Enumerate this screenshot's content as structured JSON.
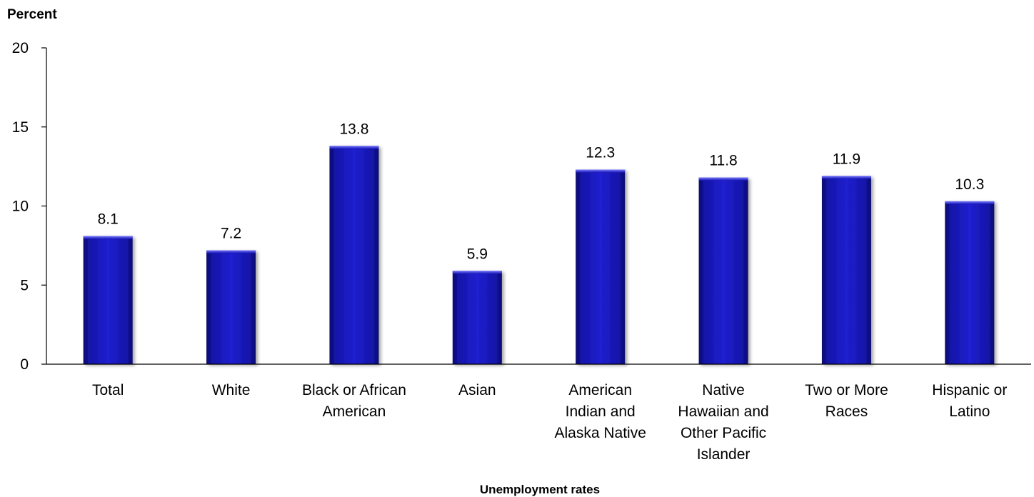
{
  "chart_data": {
    "type": "bar",
    "ylabel": "Percent",
    "xlabel": "Unemployment rates",
    "ylim": [
      0,
      20
    ],
    "yticks": [
      "0",
      "5",
      "10",
      "15",
      "20"
    ],
    "categories": [
      [
        "Total"
      ],
      [
        "White"
      ],
      [
        "Black or African",
        "American"
      ],
      [
        "Asian"
      ],
      [
        "American",
        "Indian and",
        "Alaska Native"
      ],
      [
        "Native",
        "Hawaiian and",
        "Other Pacific",
        "Islander"
      ],
      [
        "Two or More",
        "Races"
      ],
      [
        "Hispanic or",
        "Latino"
      ]
    ],
    "values": [
      8.1,
      7.2,
      13.8,
      5.9,
      12.3,
      11.8,
      11.9,
      10.3
    ],
    "value_labels": [
      "8.1",
      "7.2",
      "13.8",
      "5.9",
      "12.3",
      "11.8",
      "11.9",
      "10.3"
    ],
    "bar_color": "#1a1ab8",
    "grid": false,
    "legend": "none"
  }
}
